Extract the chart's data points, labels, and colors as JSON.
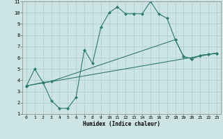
{
  "background_color": "#cde4e4",
  "grid_color": "#aacccc",
  "line_color": "#2d7a6e",
  "xlabel": "Humidex (Indice chaleur)",
  "xlim": [
    -0.5,
    23.5
  ],
  "ylim": [
    1,
    11
  ],
  "xticks": [
    0,
    1,
    2,
    3,
    4,
    5,
    6,
    7,
    8,
    9,
    10,
    11,
    12,
    13,
    14,
    15,
    16,
    17,
    18,
    19,
    20,
    21,
    22,
    23
  ],
  "yticks": [
    1,
    2,
    3,
    4,
    5,
    6,
    7,
    8,
    9,
    10,
    11
  ],
  "line1_x": [
    0,
    1,
    2,
    3,
    4,
    5,
    6,
    7,
    8,
    9,
    10,
    11,
    12,
    13,
    14,
    15,
    16,
    17,
    18,
    19,
    20,
    21,
    22,
    23
  ],
  "line1_y": [
    3.5,
    5.0,
    3.8,
    2.2,
    1.5,
    1.5,
    2.5,
    6.7,
    5.5,
    8.7,
    10.0,
    10.5,
    9.9,
    9.9,
    9.9,
    11.0,
    9.9,
    9.5,
    7.6,
    6.1,
    5.9,
    6.2,
    6.3,
    6.4
  ],
  "line2_x": [
    0,
    2,
    3,
    18,
    19,
    20,
    21,
    22,
    23
  ],
  "line2_y": [
    3.5,
    3.8,
    3.9,
    7.6,
    6.1,
    5.9,
    6.2,
    6.3,
    6.4
  ],
  "line3_x": [
    0,
    23
  ],
  "line3_y": [
    3.5,
    6.4
  ],
  "linewidth": 0.8
}
